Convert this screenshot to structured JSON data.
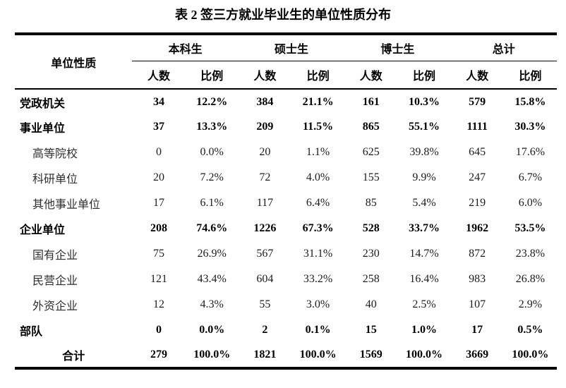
{
  "title": "表 2 签三方就业毕业生的单位性质分布",
  "colors": {
    "background": "#ffffff",
    "text": "#000000",
    "border": "#000000"
  },
  "table": {
    "row_header_label": "单位性质",
    "groups": [
      {
        "label": "本科生"
      },
      {
        "label": "硕士生"
      },
      {
        "label": "博士生"
      },
      {
        "label": "总计"
      }
    ],
    "subheaders": {
      "count": "人数",
      "ratio": "比例"
    },
    "rows": [
      {
        "label": "党政机关",
        "bold": true,
        "indent": false,
        "center": false,
        "values": [
          "34",
          "12.2%",
          "384",
          "21.1%",
          "161",
          "10.3%",
          "579",
          "15.8%"
        ]
      },
      {
        "label": "事业单位",
        "bold": true,
        "indent": false,
        "center": false,
        "values": [
          "37",
          "13.3%",
          "209",
          "11.5%",
          "865",
          "55.1%",
          "1111",
          "30.3%"
        ]
      },
      {
        "label": "高等院校",
        "bold": false,
        "indent": true,
        "center": false,
        "values": [
          "0",
          "0.0%",
          "20",
          "1.1%",
          "625",
          "39.8%",
          "645",
          "17.6%"
        ]
      },
      {
        "label": "科研单位",
        "bold": false,
        "indent": true,
        "center": false,
        "values": [
          "20",
          "7.2%",
          "72",
          "4.0%",
          "155",
          "9.9%",
          "247",
          "6.7%"
        ]
      },
      {
        "label": "其他事业单位",
        "bold": false,
        "indent": true,
        "center": false,
        "values": [
          "17",
          "6.1%",
          "117",
          "6.4%",
          "85",
          "5.4%",
          "219",
          "6.0%"
        ]
      },
      {
        "label": "企业单位",
        "bold": true,
        "indent": false,
        "center": false,
        "values": [
          "208",
          "74.6%",
          "1226",
          "67.3%",
          "528",
          "33.7%",
          "1962",
          "53.5%"
        ]
      },
      {
        "label": "国有企业",
        "bold": false,
        "indent": true,
        "center": false,
        "values": [
          "75",
          "26.9%",
          "567",
          "31.1%",
          "230",
          "14.7%",
          "872",
          "23.8%"
        ]
      },
      {
        "label": "民营企业",
        "bold": false,
        "indent": true,
        "center": false,
        "values": [
          "121",
          "43.4%",
          "604",
          "33.2%",
          "258",
          "16.4%",
          "983",
          "26.8%"
        ]
      },
      {
        "label": "外资企业",
        "bold": false,
        "indent": true,
        "center": false,
        "values": [
          "12",
          "4.3%",
          "55",
          "3.0%",
          "40",
          "2.5%",
          "107",
          "2.9%"
        ]
      },
      {
        "label": "部队",
        "bold": true,
        "indent": false,
        "center": false,
        "values": [
          "0",
          "0.0%",
          "2",
          "0.1%",
          "15",
          "1.0%",
          "17",
          "0.5%"
        ]
      },
      {
        "label": "合计",
        "bold": true,
        "indent": false,
        "center": true,
        "values": [
          "279",
          "100.0%",
          "1821",
          "100.0%",
          "1569",
          "100.0%",
          "3669",
          "100.0%"
        ]
      }
    ]
  }
}
